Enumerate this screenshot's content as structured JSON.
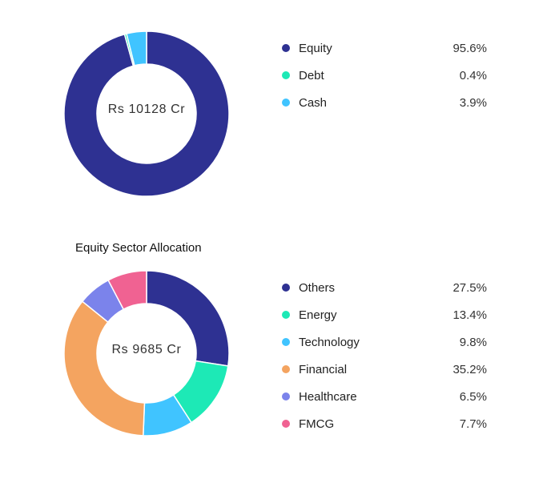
{
  "chart_data": [
    {
      "type": "pie",
      "title": "",
      "center_label": "Rs 10128 Cr",
      "categories": [
        "Equity",
        "Debt",
        "Cash"
      ],
      "values": [
        95.6,
        0.4,
        3.9
      ],
      "value_labels": [
        "95.6%",
        "0.4%",
        "3.9%"
      ],
      "colors": [
        "#2e3192",
        "#1de9b6",
        "#40c4ff"
      ],
      "legend_position": "right"
    },
    {
      "type": "pie",
      "title": "Equity Sector Allocation",
      "center_label": "Rs 9685 Cr",
      "categories": [
        "Others",
        "Energy",
        "Technology",
        "Financial",
        "Healthcare",
        "FMCG"
      ],
      "values": [
        27.5,
        13.4,
        9.8,
        35.2,
        6.5,
        7.7
      ],
      "value_labels": [
        "27.5%",
        "13.4%",
        "9.8%",
        "35.2%",
        "6.5%",
        "7.7%"
      ],
      "colors": [
        "#2e3192",
        "#1de9b6",
        "#40c4ff",
        "#f4a460",
        "#7b83eb",
        "#f06292"
      ],
      "legend_position": "right"
    }
  ]
}
